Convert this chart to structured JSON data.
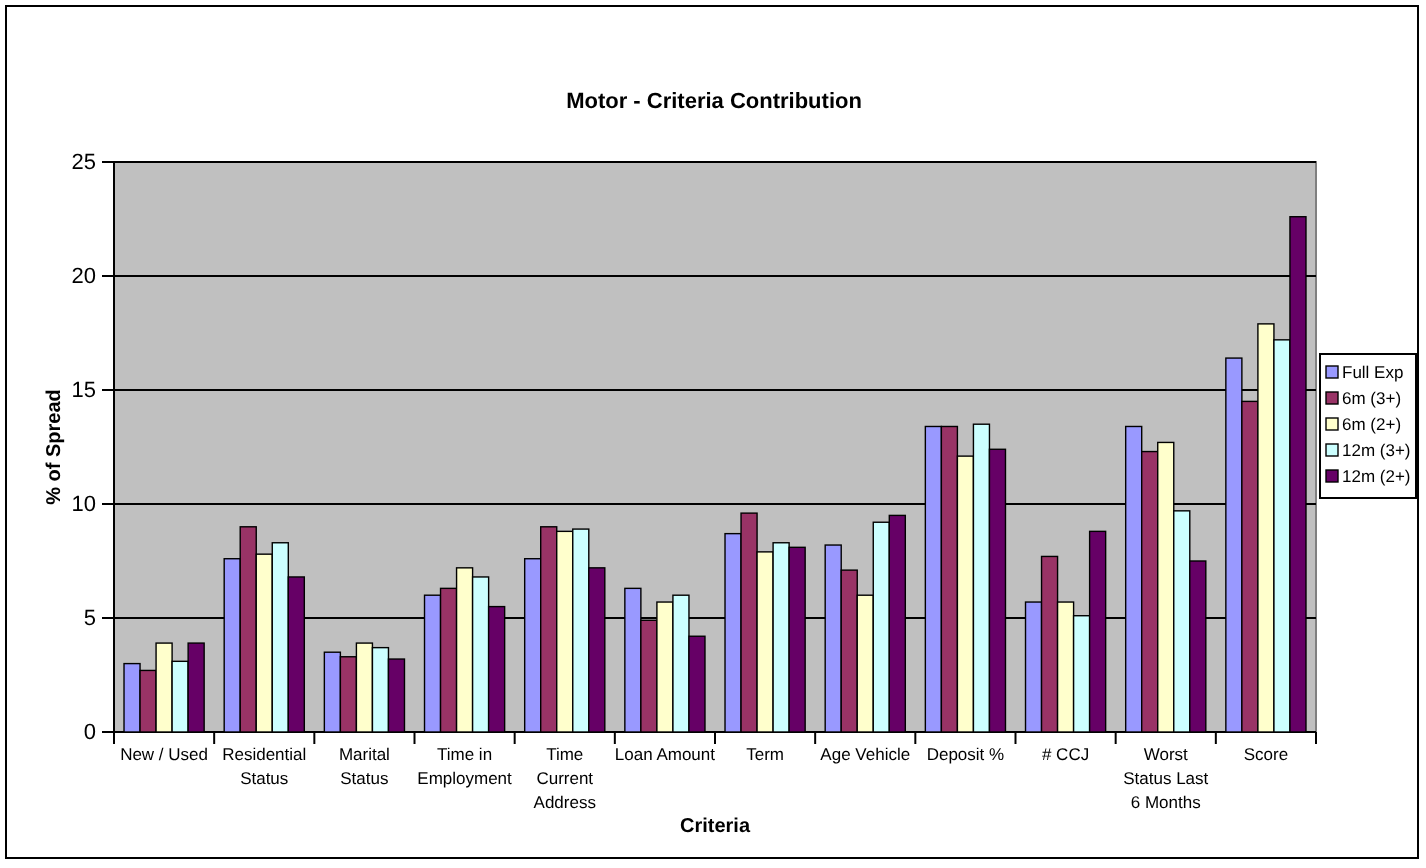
{
  "chart_data": {
    "type": "bar",
    "title": "Motor - Criteria Contribution",
    "xlabel": "Criteria",
    "ylabel": "% of Spread",
    "categories": [
      "New / Used",
      "Residential Status",
      "Marital Status",
      "Time in Employment",
      "Time Current Address",
      "Loan Amount",
      "Term",
      "Age Vehicle",
      "Deposit %",
      "# CCJ",
      "Worst Status Last 6 Months",
      "Score"
    ],
    "series": [
      {
        "name": "Full Exp",
        "color": "#9999ff",
        "values": [
          3.0,
          7.6,
          3.5,
          6.0,
          7.6,
          6.3,
          8.7,
          8.2,
          13.4,
          5.7,
          13.4,
          16.4
        ]
      },
      {
        "name": "6m (3+)",
        "color": "#993366",
        "values": [
          2.7,
          9.0,
          3.3,
          6.3,
          9.0,
          4.9,
          9.6,
          7.1,
          13.4,
          7.7,
          12.3,
          14.5
        ]
      },
      {
        "name": "6m (2+)",
        "color": "#ffffcc",
        "values": [
          3.9,
          7.8,
          3.9,
          7.2,
          8.8,
          5.7,
          7.9,
          6.0,
          12.1,
          5.7,
          12.7,
          17.9
        ]
      },
      {
        "name": "12m (3+)",
        "color": "#ccffff",
        "values": [
          3.1,
          8.3,
          3.7,
          6.8,
          8.9,
          6.0,
          8.3,
          9.2,
          13.5,
          5.1,
          9.7,
          17.2
        ]
      },
      {
        "name": "12m (2+)",
        "color": "#660066",
        "values": [
          3.9,
          6.8,
          3.2,
          5.5,
          7.2,
          4.2,
          8.1,
          9.5,
          12.4,
          8.8,
          7.5,
          22.6
        ]
      }
    ],
    "ylim": [
      0,
      25
    ],
    "yticks": [
      0,
      5,
      10,
      15,
      20,
      25
    ],
    "grid": "y",
    "legend": "right"
  }
}
